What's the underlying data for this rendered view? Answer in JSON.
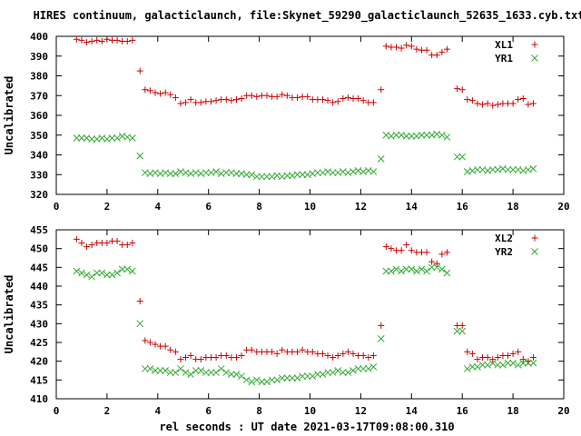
{
  "title": "HIRES continuum, galacticlaunch, file:Skynet_59290_galacticlaunch_52635_1633.cyb.txt",
  "xlabel": "rel seconds : UT date 2021-03-17T09:08:00.310",
  "colors": {
    "x_series": "#cc0000",
    "y_series": "#33aa33"
  },
  "chart_data": [
    {
      "type": "scatter",
      "title": "",
      "xlabel": "",
      "ylabel": "Uncalibrated",
      "xlim": [
        0,
        20
      ],
      "ylim": [
        320,
        400
      ],
      "xticks": [
        0,
        2,
        4,
        6,
        8,
        10,
        12,
        14,
        16,
        18,
        20
      ],
      "yticks": [
        320,
        330,
        340,
        350,
        360,
        370,
        380,
        390,
        400
      ],
      "grid": false,
      "legend": "top-right",
      "x": [
        0.8,
        1.0,
        1.2,
        1.4,
        1.6,
        1.8,
        2.0,
        2.2,
        2.4,
        2.6,
        2.8,
        3.0,
        3.3,
        3.5,
        3.7,
        3.9,
        4.1,
        4.3,
        4.5,
        4.7,
        4.9,
        5.1,
        5.3,
        5.5,
        5.7,
        5.9,
        6.1,
        6.3,
        6.5,
        6.7,
        6.9,
        7.1,
        7.3,
        7.5,
        7.7,
        7.9,
        8.1,
        8.3,
        8.5,
        8.7,
        8.9,
        9.1,
        9.3,
        9.5,
        9.7,
        9.9,
        10.1,
        10.3,
        10.5,
        10.7,
        10.9,
        11.1,
        11.3,
        11.5,
        11.7,
        11.9,
        12.1,
        12.3,
        12.5,
        12.8,
        13.0,
        13.2,
        13.4,
        13.6,
        13.8,
        14.0,
        14.2,
        14.4,
        14.6,
        14.8,
        15.0,
        15.2,
        15.4,
        15.8,
        16.0,
        16.2,
        16.4,
        16.6,
        16.8,
        17.0,
        17.2,
        17.4,
        17.6,
        17.8,
        18.0,
        18.2,
        18.4,
        18.6,
        18.8
      ],
      "series": [
        {
          "name": "XL1",
          "marker": "plus",
          "values": [
            398.5,
            398.0,
            397.0,
            397.5,
            398.0,
            397.5,
            398.5,
            398.0,
            398.0,
            397.5,
            397.5,
            398.0,
            382.5,
            373.0,
            372.5,
            371.5,
            371.0,
            371.5,
            370.5,
            369.0,
            366.0,
            366.5,
            368.0,
            366.5,
            366.5,
            367.0,
            367.0,
            367.5,
            368.0,
            368.0,
            367.5,
            368.0,
            368.5,
            370.0,
            370.0,
            369.5,
            370.0,
            370.0,
            369.5,
            369.5,
            370.5,
            370.0,
            369.0,
            369.0,
            369.5,
            369.5,
            368.0,
            368.0,
            368.0,
            367.5,
            366.5,
            367.0,
            368.5,
            369.0,
            368.5,
            368.5,
            367.5,
            366.5,
            366.5,
            373.0,
            395.0,
            394.5,
            394.5,
            394.0,
            395.5,
            395.0,
            393.5,
            393.0,
            393.0,
            390.5,
            390.5,
            392.0,
            393.5,
            373.5,
            373.0,
            368.0,
            367.5,
            366.0,
            365.5,
            366.0,
            365.0,
            365.5,
            366.0,
            366.0,
            366.0,
            368.0,
            368.5,
            365.5,
            366.0
          ]
        },
        {
          "name": "YR1",
          "marker": "cross",
          "values": [
            348.5,
            348.5,
            348.5,
            348.0,
            348.0,
            348.5,
            348.0,
            348.5,
            348.5,
            349.5,
            349.0,
            348.5,
            339.5,
            331.0,
            330.5,
            331.0,
            330.5,
            331.0,
            330.5,
            330.5,
            331.5,
            331.0,
            330.5,
            331.0,
            330.5,
            331.0,
            331.0,
            331.5,
            330.5,
            331.0,
            331.0,
            330.5,
            330.5,
            330.0,
            330.0,
            329.0,
            329.0,
            329.0,
            329.0,
            329.5,
            329.0,
            329.5,
            329.5,
            330.0,
            330.0,
            330.0,
            330.5,
            331.0,
            331.0,
            331.5,
            331.0,
            331.0,
            331.5,
            331.0,
            331.5,
            332.0,
            331.5,
            332.0,
            331.5,
            338.0,
            350.0,
            349.5,
            350.0,
            350.0,
            349.5,
            349.5,
            349.5,
            350.0,
            350.0,
            350.0,
            350.5,
            350.0,
            349.0,
            339.0,
            339.0,
            331.5,
            332.0,
            332.5,
            332.5,
            332.0,
            332.5,
            332.5,
            333.0,
            332.5,
            332.5,
            332.5,
            332.0,
            332.5,
            333.0
          ]
        }
      ]
    },
    {
      "type": "scatter",
      "title": "",
      "xlabel": "",
      "ylabel": "Uncalibrated",
      "xlim": [
        0,
        20
      ],
      "ylim": [
        410,
        455
      ],
      "xticks": [
        0,
        2,
        4,
        6,
        8,
        10,
        12,
        14,
        16,
        18,
        20
      ],
      "yticks": [
        410,
        415,
        420,
        425,
        430,
        435,
        440,
        445,
        450,
        455
      ],
      "grid": false,
      "legend": "top-right",
      "x": [
        0.8,
        1.0,
        1.2,
        1.4,
        1.6,
        1.8,
        2.0,
        2.2,
        2.4,
        2.6,
        2.8,
        3.0,
        3.3,
        3.5,
        3.7,
        3.9,
        4.1,
        4.3,
        4.5,
        4.7,
        4.9,
        5.1,
        5.3,
        5.5,
        5.7,
        5.9,
        6.1,
        6.3,
        6.5,
        6.7,
        6.9,
        7.1,
        7.3,
        7.5,
        7.7,
        7.9,
        8.1,
        8.3,
        8.5,
        8.7,
        8.9,
        9.1,
        9.3,
        9.5,
        9.7,
        9.9,
        10.1,
        10.3,
        10.5,
        10.7,
        10.9,
        11.1,
        11.3,
        11.5,
        11.7,
        11.9,
        12.1,
        12.3,
        12.5,
        12.8,
        13.0,
        13.2,
        13.4,
        13.6,
        13.8,
        14.0,
        14.2,
        14.4,
        14.6,
        14.8,
        15.0,
        15.2,
        15.4,
        15.8,
        16.0,
        16.2,
        16.4,
        16.6,
        16.8,
        17.0,
        17.2,
        17.4,
        17.6,
        17.8,
        18.0,
        18.2,
        18.4,
        18.6,
        18.8
      ],
      "series": [
        {
          "name": "XL2",
          "marker": "plus",
          "values": [
            452.5,
            451.5,
            450.5,
            451.0,
            451.5,
            451.5,
            451.5,
            452.0,
            452.0,
            451.0,
            451.0,
            451.5,
            436.0,
            425.5,
            425.0,
            424.5,
            424.0,
            424.0,
            423.0,
            422.5,
            420.5,
            421.0,
            421.5,
            420.5,
            420.5,
            421.0,
            421.0,
            421.0,
            421.5,
            421.5,
            421.0,
            421.0,
            421.5,
            423.0,
            423.0,
            422.5,
            422.5,
            422.5,
            422.5,
            422.0,
            423.0,
            422.5,
            422.5,
            422.5,
            423.0,
            422.5,
            422.5,
            422.0,
            422.0,
            421.5,
            421.0,
            421.5,
            422.0,
            422.5,
            422.0,
            421.5,
            421.5,
            421.0,
            421.5,
            429.5,
            450.5,
            450.0,
            449.5,
            449.5,
            451.0,
            449.5,
            449.0,
            449.0,
            449.0,
            446.5,
            446.0,
            448.5,
            449.0,
            429.5,
            429.5,
            422.5,
            422.0,
            420.5,
            421.0,
            421.0,
            420.5,
            421.0,
            421.5,
            421.5,
            422.0,
            422.5,
            420.5,
            420.0,
            421.0
          ]
        },
        {
          "name": "YR2",
          "marker": "cross",
          "values": [
            444.0,
            443.5,
            443.0,
            442.5,
            443.5,
            443.5,
            443.0,
            443.0,
            443.5,
            444.5,
            444.5,
            444.0,
            430.0,
            418.0,
            418.0,
            417.5,
            417.5,
            417.5,
            417.0,
            417.0,
            418.0,
            417.0,
            416.5,
            417.5,
            417.5,
            417.0,
            417.0,
            417.0,
            418.0,
            417.0,
            416.5,
            416.5,
            416.0,
            415.0,
            414.5,
            415.0,
            414.5,
            414.5,
            415.0,
            415.0,
            415.5,
            415.5,
            415.5,
            415.5,
            416.0,
            416.0,
            416.0,
            416.5,
            416.5,
            417.0,
            417.0,
            417.5,
            417.0,
            417.0,
            417.5,
            418.0,
            418.0,
            418.0,
            418.5,
            426.0,
            444.0,
            444.0,
            444.5,
            444.0,
            444.5,
            444.5,
            444.0,
            444.5,
            444.0,
            445.0,
            445.0,
            444.5,
            443.5,
            428.0,
            428.0,
            418.0,
            418.5,
            418.5,
            419.0,
            419.0,
            419.5,
            419.0,
            419.0,
            419.5,
            419.5,
            419.0,
            419.5,
            419.5,
            419.5
          ]
        }
      ]
    }
  ]
}
